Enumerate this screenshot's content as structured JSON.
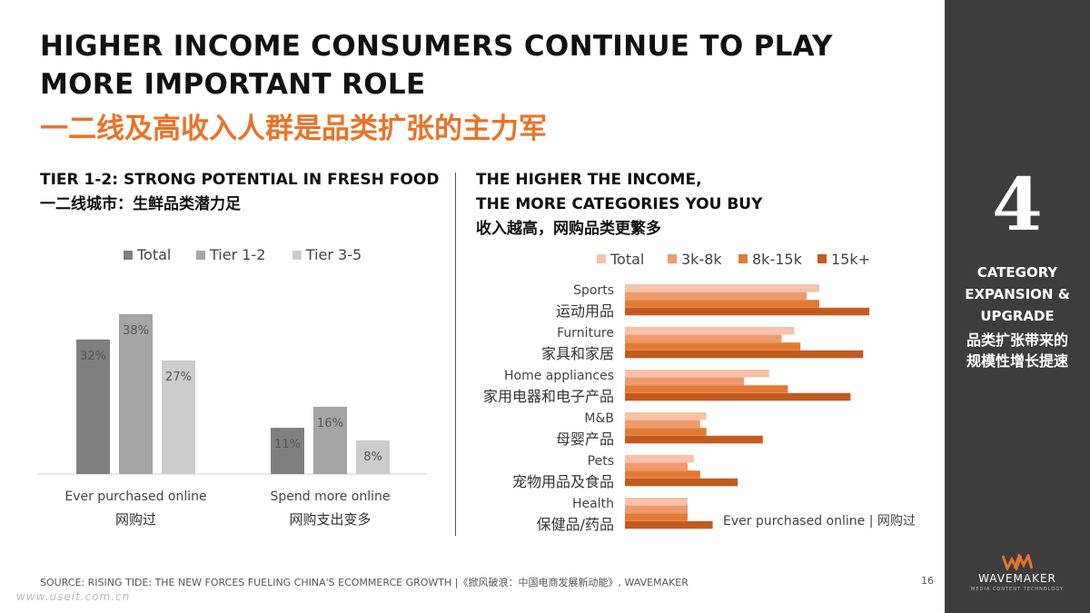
{
  "header": {
    "title_en": "HIGHER INCOME CONSUMERS CONTINUE TO PLAY MORE IMPORTANT ROLE",
    "title_cn": "一二线及高收入人群是品类扩张的主力军"
  },
  "left_section": {
    "heading_en": "TIER 1-2: STRONG POTENTIAL IN FRESH FOOD",
    "heading_cn": "一二线城市：生鲜品类潜力足"
  },
  "right_section": {
    "heading_en_1": "THE HIGHER THE INCOME,",
    "heading_en_2": "THE MORE CATEGORIES YOU BUY",
    "heading_cn": "收入越高，网购品类更繁多"
  },
  "chart_data": [
    {
      "type": "bar",
      "categories": [
        {
          "en": "Ever purchased online",
          "cn": "网购过"
        },
        {
          "en": "Spend more online",
          "cn": "网购支出变多"
        }
      ],
      "series": [
        {
          "name": "Total",
          "values": [
            32,
            11
          ],
          "labels": [
            "32%",
            "11%"
          ],
          "color": "#7f7f7f"
        },
        {
          "name": "Tier 1-2",
          "values": [
            38,
            16
          ],
          "labels": [
            "38%",
            "16%"
          ],
          "color": "#a5a5a5"
        },
        {
          "name": "Tier 3-5",
          "values": [
            27,
            8
          ],
          "labels": [
            "27%",
            "8%"
          ],
          "color": "#cccccc"
        }
      ],
      "ylim": [
        0,
        40
      ],
      "legend": "top",
      "grid": false
    },
    {
      "type": "bar",
      "orientation": "horizontal",
      "annotation": "Ever purchased online | 网购过",
      "categories": [
        {
          "en": "Sports",
          "cn": "运动用品"
        },
        {
          "en": "Furniture",
          "cn": "家具和家居"
        },
        {
          "en": "Home appliances",
          "cn": "家用电器和电子产品"
        },
        {
          "en": "M&B",
          "cn": "母婴产品"
        },
        {
          "en": "Pets",
          "cn": "宠物用品及食品"
        },
        {
          "en": "Health",
          "cn": "保健品/药品"
        }
      ],
      "series": [
        {
          "name": "Total",
          "values": [
            31,
            27,
            23,
            13,
            11,
            10
          ],
          "color": "#f4c3aa"
        },
        {
          "name": "3k-8k",
          "values": [
            29,
            25,
            19,
            12,
            10,
            10
          ],
          "color": "#ee9a6c"
        },
        {
          "name": "8k-15k",
          "values": [
            31,
            28,
            26,
            13,
            12,
            10
          ],
          "color": "#e27a36"
        },
        {
          "name": "15k+",
          "values": [
            39,
            38,
            36,
            22,
            18,
            14
          ],
          "color": "#c55a1d"
        }
      ],
      "xlim": [
        0,
        50
      ],
      "legend": "top",
      "grid": false
    }
  ],
  "sidebar": {
    "number": "4",
    "label_en_1": "CATEGORY",
    "label_en_2": "EXPANSION &",
    "label_en_3": "UPGRADE",
    "label_cn_1": "品类扩张带来的",
    "label_cn_2": "规模性增长提速",
    "logo_text": "WAVEMAKER",
    "logo_sub": "MEDIA CONTENT TECHNOLOGY",
    "logo_color": "#e8732a"
  },
  "footer": {
    "source": "SOURCE: RISING TIDE: THE NEW FORCES FUELING CHINA'S ECOMMERCE GROWTH |《掀风破浪：中国电商发展新动能》, WAVEMAKER",
    "page": "16",
    "watermark": "www.useit.com.cn"
  },
  "colors": {
    "accent": "#e8732a",
    "sidebar_bg": "#3d3d3d"
  }
}
